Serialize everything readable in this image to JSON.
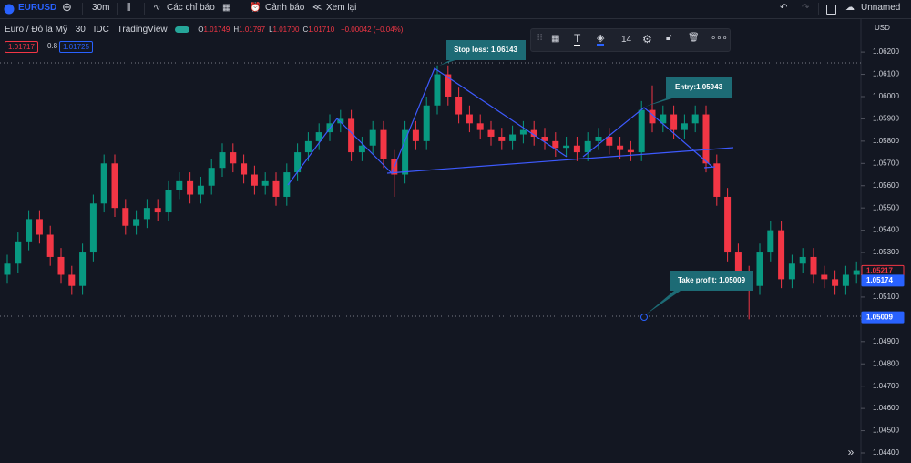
{
  "toolbar": {
    "symbol": "EURUSD",
    "interval": "30m",
    "indicators": "Các chỉ báo",
    "alerts": "Cảnh báo",
    "replay": "Xem lại",
    "layout_name": "Unnamed"
  },
  "legend": {
    "name": "Euro / Đô la Mỹ",
    "interval": "30",
    "source": "IDC",
    "provider": "TradingView",
    "ohlc": [
      {
        "k": "O",
        "v": "1.01749"
      },
      {
        "k": "H",
        "v": "1.01797"
      },
      {
        "k": "L",
        "v": "1.01700"
      },
      {
        "k": "C",
        "v": "1.01710"
      }
    ],
    "change": "−0.00042 (−0.04%)",
    "bid": "1.01717",
    "spread": "0.8",
    "ask": "1.01725"
  },
  "drawing_toolbar": {
    "size": "14"
  },
  "chart_data": {
    "type": "candlestick",
    "currency": "USD",
    "colors": {
      "up": "#089981",
      "down": "#f23645"
    },
    "ylim": [
      1.0627,
      1.04355
    ],
    "yticks": [
      {
        "value": 1.044,
        "label": "1.04400"
      },
      {
        "value": 1.045,
        "label": "1.04500"
      },
      {
        "value": 1.046,
        "label": "1.04600"
      },
      {
        "value": 1.047,
        "label": "1.04700"
      },
      {
        "value": 1.048,
        "label": "1.04800"
      },
      {
        "value": 1.049,
        "label": "1.04900"
      },
      {
        "value": 1.05,
        "label": "1.05000"
      },
      {
        "value": 1.051,
        "label": "1.05100"
      },
      {
        "value": 1.052,
        "label": "1.05200"
      },
      {
        "value": 1.053,
        "label": "1.05300"
      },
      {
        "value": 1.054,
        "label": "1.05400"
      },
      {
        "value": 1.055,
        "label": "1.05500"
      },
      {
        "value": 1.056,
        "label": "1.05600"
      },
      {
        "value": 1.057,
        "label": "1.05700"
      },
      {
        "value": 1.058,
        "label": "1.05800"
      },
      {
        "value": 1.059,
        "label": "1.05900"
      },
      {
        "value": 1.06,
        "label": "1.06000"
      },
      {
        "value": 1.061,
        "label": "1.06100"
      },
      {
        "value": 1.062,
        "label": "1.06200"
      }
    ],
    "annotations": {
      "stop_loss": "Stop loss: 1.06143",
      "entry": "Entry:1.05943",
      "take_profit": "Take profit: 1.05009"
    },
    "price_labels": [
      {
        "value": 1.05217,
        "color": "#f23645"
      },
      {
        "value": 1.05174,
        "color": "#2962ff"
      },
      {
        "value": 1.05009,
        "color": "#2962ff"
      }
    ],
    "candles": [
      [
        1.052,
        1.0529,
        1.0516,
        1.0525
      ],
      [
        1.0525,
        1.0539,
        1.0521,
        1.0535
      ],
      [
        1.0535,
        1.0549,
        1.0531,
        1.0545
      ],
      [
        1.0545,
        1.0549,
        1.0534,
        1.0538
      ],
      [
        1.0538,
        1.0542,
        1.0524,
        1.0528
      ],
      [
        1.0528,
        1.0532,
        1.0516,
        1.052
      ],
      [
        1.052,
        1.0524,
        1.0511,
        1.0515
      ],
      [
        1.0515,
        1.0534,
        1.0511,
        1.053
      ],
      [
        1.053,
        1.0556,
        1.0526,
        1.0552
      ],
      [
        1.0552,
        1.0574,
        1.0548,
        1.057
      ],
      [
        1.057,
        1.0574,
        1.0546,
        1.055
      ],
      [
        1.055,
        1.0554,
        1.0538,
        1.0542
      ],
      [
        1.0542,
        1.0549,
        1.0538,
        1.0545
      ],
      [
        1.0545,
        1.0554,
        1.0541,
        1.055
      ],
      [
        1.055,
        1.0554,
        1.0544,
        1.0548
      ],
      [
        1.0548,
        1.0562,
        1.0544,
        1.0558
      ],
      [
        1.0558,
        1.0566,
        1.0554,
        1.0562
      ],
      [
        1.0562,
        1.0566,
        1.0552,
        1.0556
      ],
      [
        1.0556,
        1.0564,
        1.0552,
        1.056
      ],
      [
        1.056,
        1.0572,
        1.0556,
        1.0568
      ],
      [
        1.0568,
        1.0579,
        1.0564,
        1.0575
      ],
      [
        1.0575,
        1.0579,
        1.0566,
        1.057
      ],
      [
        1.057,
        1.0574,
        1.0561,
        1.0565
      ],
      [
        1.0565,
        1.0569,
        1.0556,
        1.056
      ],
      [
        1.056,
        1.0566,
        1.0556,
        1.0562
      ],
      [
        1.0562,
        1.0566,
        1.0551,
        1.0555
      ],
      [
        1.0555,
        1.057,
        1.0551,
        1.0566
      ],
      [
        1.0566,
        1.0579,
        1.0562,
        1.0575
      ],
      [
        1.0575,
        1.0584,
        1.0571,
        1.058
      ],
      [
        1.058,
        1.0588,
        1.0576,
        1.0584
      ],
      [
        1.0584,
        1.0592,
        1.058,
        1.0588
      ],
      [
        1.0588,
        1.0594,
        1.0584,
        1.059
      ],
      [
        1.059,
        1.0594,
        1.0571,
        1.0575
      ],
      [
        1.0575,
        1.0582,
        1.0571,
        1.0578
      ],
      [
        1.0578,
        1.0589,
        1.0574,
        1.0585
      ],
      [
        1.0585,
        1.0589,
        1.0568,
        1.0572
      ],
      [
        1.0572,
        1.0576,
        1.0555,
        1.0565
      ],
      [
        1.0565,
        1.0589,
        1.0561,
        1.0585
      ],
      [
        1.0585,
        1.0589,
        1.0576,
        1.058
      ],
      [
        1.058,
        1.06,
        1.0576,
        1.0596
      ],
      [
        1.0596,
        1.0614,
        1.0592,
        1.061
      ],
      [
        1.061,
        1.0614,
        1.0596,
        1.06
      ],
      [
        1.06,
        1.0604,
        1.0588,
        1.0592
      ],
      [
        1.0592,
        1.0596,
        1.0584,
        1.0588
      ],
      [
        1.0588,
        1.0592,
        1.0581,
        1.0585
      ],
      [
        1.0585,
        1.0589,
        1.0578,
        1.0582
      ],
      [
        1.0582,
        1.0586,
        1.0576,
        1.058
      ],
      [
        1.058,
        1.0587,
        1.0576,
        1.0583
      ],
      [
        1.0583,
        1.0589,
        1.0579,
        1.0585
      ],
      [
        1.0585,
        1.0589,
        1.0578,
        1.0582
      ],
      [
        1.0582,
        1.0586,
        1.0576,
        1.058
      ],
      [
        1.058,
        1.0584,
        1.0573,
        1.0577
      ],
      [
        1.0577,
        1.0582,
        1.0573,
        1.0578
      ],
      [
        1.0578,
        1.0582,
        1.0571,
        1.0575
      ],
      [
        1.0575,
        1.0584,
        1.0571,
        1.058
      ],
      [
        1.058,
        1.0586,
        1.0576,
        1.0582
      ],
      [
        1.0582,
        1.0586,
        1.0574,
        1.0578
      ],
      [
        1.0578,
        1.0582,
        1.0572,
        1.0576
      ],
      [
        1.0576,
        1.058,
        1.0571,
        1.0575
      ],
      [
        1.0575,
        1.0598,
        1.0571,
        1.0594
      ],
      [
        1.0594,
        1.0605,
        1.0584,
        1.0588
      ],
      [
        1.0588,
        1.0596,
        1.0584,
        1.0592
      ],
      [
        1.0592,
        1.0596,
        1.0581,
        1.0585
      ],
      [
        1.0585,
        1.0592,
        1.0581,
        1.0588
      ],
      [
        1.0588,
        1.0596,
        1.0584,
        1.0592
      ],
      [
        1.0592,
        1.0596,
        1.0566,
        1.057
      ],
      [
        1.057,
        1.0574,
        1.0551,
        1.0555
      ],
      [
        1.0555,
        1.0559,
        1.0526,
        1.053
      ],
      [
        1.053,
        1.0534,
        1.0516,
        1.052
      ],
      [
        1.052,
        1.0524,
        1.05,
        1.0515
      ],
      [
        1.0515,
        1.0534,
        1.0511,
        1.053
      ],
      [
        1.053,
        1.0544,
        1.0526,
        1.054
      ],
      [
        1.054,
        1.0544,
        1.0514,
        1.0518
      ],
      [
        1.0518,
        1.0529,
        1.0514,
        1.0525
      ],
      [
        1.0525,
        1.0532,
        1.0521,
        1.0528
      ],
      [
        1.0528,
        1.0532,
        1.0516,
        1.052
      ],
      [
        1.052,
        1.0524,
        1.0514,
        1.0518
      ],
      [
        1.0518,
        1.0522,
        1.0511,
        1.0515
      ],
      [
        1.0515,
        1.0524,
        1.0511,
        1.052
      ],
      [
        1.052,
        1.0526,
        1.0516,
        1.0522
      ]
    ]
  }
}
